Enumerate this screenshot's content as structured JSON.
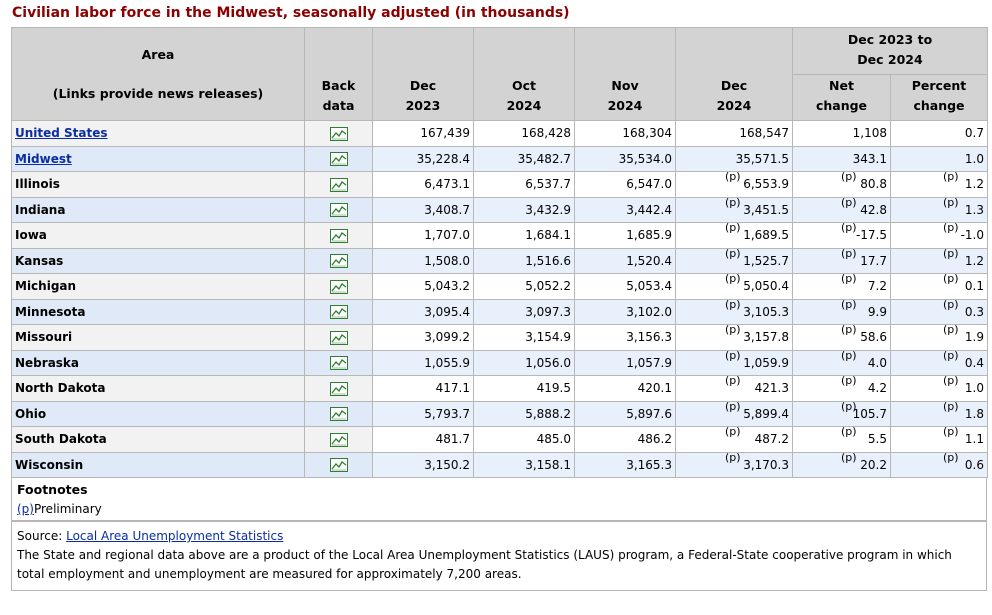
{
  "caption": "Civilian labor force in the Midwest, seasonally adjusted (in thousands)",
  "header": {
    "area_label": "Area",
    "area_sub": "(Links provide news releases)",
    "back_data_1": "Back",
    "back_data_2": "data",
    "cols": [
      {
        "l1": "Dec",
        "l2": "2023"
      },
      {
        "l1": "Oct",
        "l2": "2024"
      },
      {
        "l1": "Nov",
        "l2": "2024"
      },
      {
        "l1": "Dec",
        "l2": "2024"
      }
    ],
    "group_l1": "Dec 2023 to",
    "group_l2": "Dec 2024",
    "net_1": "Net",
    "net_2": "change",
    "pct_1": "Percent",
    "pct_2": "change"
  },
  "rows": [
    {
      "name": "United States",
      "link": true,
      "level": 0,
      "v": [
        "167,439",
        "168,428",
        "168,304",
        "168,547",
        "1,108",
        "0.7"
      ],
      "p": false
    },
    {
      "name": "Midwest",
      "link": true,
      "level": 1,
      "v": [
        "35,228.4",
        "35,482.7",
        "35,534.0",
        "35,571.5",
        "343.1",
        "1.0"
      ],
      "p": false
    },
    {
      "name": "Illinois",
      "link": false,
      "level": 2,
      "v": [
        "6,473.1",
        "6,537.7",
        "6,547.0",
        "6,553.9",
        "80.8",
        "1.2"
      ],
      "p": true
    },
    {
      "name": "Indiana",
      "link": false,
      "level": 2,
      "v": [
        "3,408.7",
        "3,432.9",
        "3,442.4",
        "3,451.5",
        "42.8",
        "1.3"
      ],
      "p": true
    },
    {
      "name": "Iowa",
      "link": false,
      "level": 2,
      "v": [
        "1,707.0",
        "1,684.1",
        "1,685.9",
        "1,689.5",
        "-17.5",
        "-1.0"
      ],
      "p": true
    },
    {
      "name": "Kansas",
      "link": false,
      "level": 2,
      "v": [
        "1,508.0",
        "1,516.6",
        "1,520.4",
        "1,525.7",
        "17.7",
        "1.2"
      ],
      "p": true
    },
    {
      "name": "Michigan",
      "link": false,
      "level": 2,
      "v": [
        "5,043.2",
        "5,052.2",
        "5,053.4",
        "5,050.4",
        "7.2",
        "0.1"
      ],
      "p": true
    },
    {
      "name": "Minnesota",
      "link": false,
      "level": 2,
      "v": [
        "3,095.4",
        "3,097.3",
        "3,102.0",
        "3,105.3",
        "9.9",
        "0.3"
      ],
      "p": true
    },
    {
      "name": "Missouri",
      "link": false,
      "level": 2,
      "v": [
        "3,099.2",
        "3,154.9",
        "3,156.3",
        "3,157.8",
        "58.6",
        "1.9"
      ],
      "p": true
    },
    {
      "name": "Nebraska",
      "link": false,
      "level": 2,
      "v": [
        "1,055.9",
        "1,056.0",
        "1,057.9",
        "1,059.9",
        "4.0",
        "0.4"
      ],
      "p": true
    },
    {
      "name": "North Dakota",
      "link": false,
      "level": 2,
      "v": [
        "417.1",
        "419.5",
        "420.1",
        "421.3",
        "4.2",
        "1.0"
      ],
      "p": true
    },
    {
      "name": "Ohio",
      "link": false,
      "level": 2,
      "v": [
        "5,793.7",
        "5,888.2",
        "5,897.6",
        "5,899.4",
        "105.7",
        "1.8"
      ],
      "p": true
    },
    {
      "name": "South Dakota",
      "link": false,
      "level": 2,
      "v": [
        "481.7",
        "485.0",
        "486.2",
        "487.2",
        "5.5",
        "1.1"
      ],
      "p": true
    },
    {
      "name": "Wisconsin",
      "link": false,
      "level": 2,
      "v": [
        "3,150.2",
        "3,158.1",
        "3,165.3",
        "3,170.3",
        "20.2",
        "0.6"
      ],
      "p": true
    }
  ],
  "p_flag": "(p)",
  "icons": {
    "back_data": "line-chart-icon"
  },
  "footnotes": {
    "title": "Footnotes",
    "items": [
      {
        "mark": "(p)",
        "text": "Preliminary"
      }
    ]
  },
  "source": {
    "label": "Source:",
    "link_text": "Local Area Unemployment Statistics",
    "text": "The State and regional data above are a product of the Local Area Unemployment Statistics (LAUS) program, a Federal-State cooperative program in which total employment and unemployment are measured for approximately 7,200 areas."
  },
  "colors": {
    "caption": "#8b0000",
    "link": "#0b2da3",
    "header_bg": "#d3d3d3",
    "row_alt": "#dfe9f7"
  }
}
